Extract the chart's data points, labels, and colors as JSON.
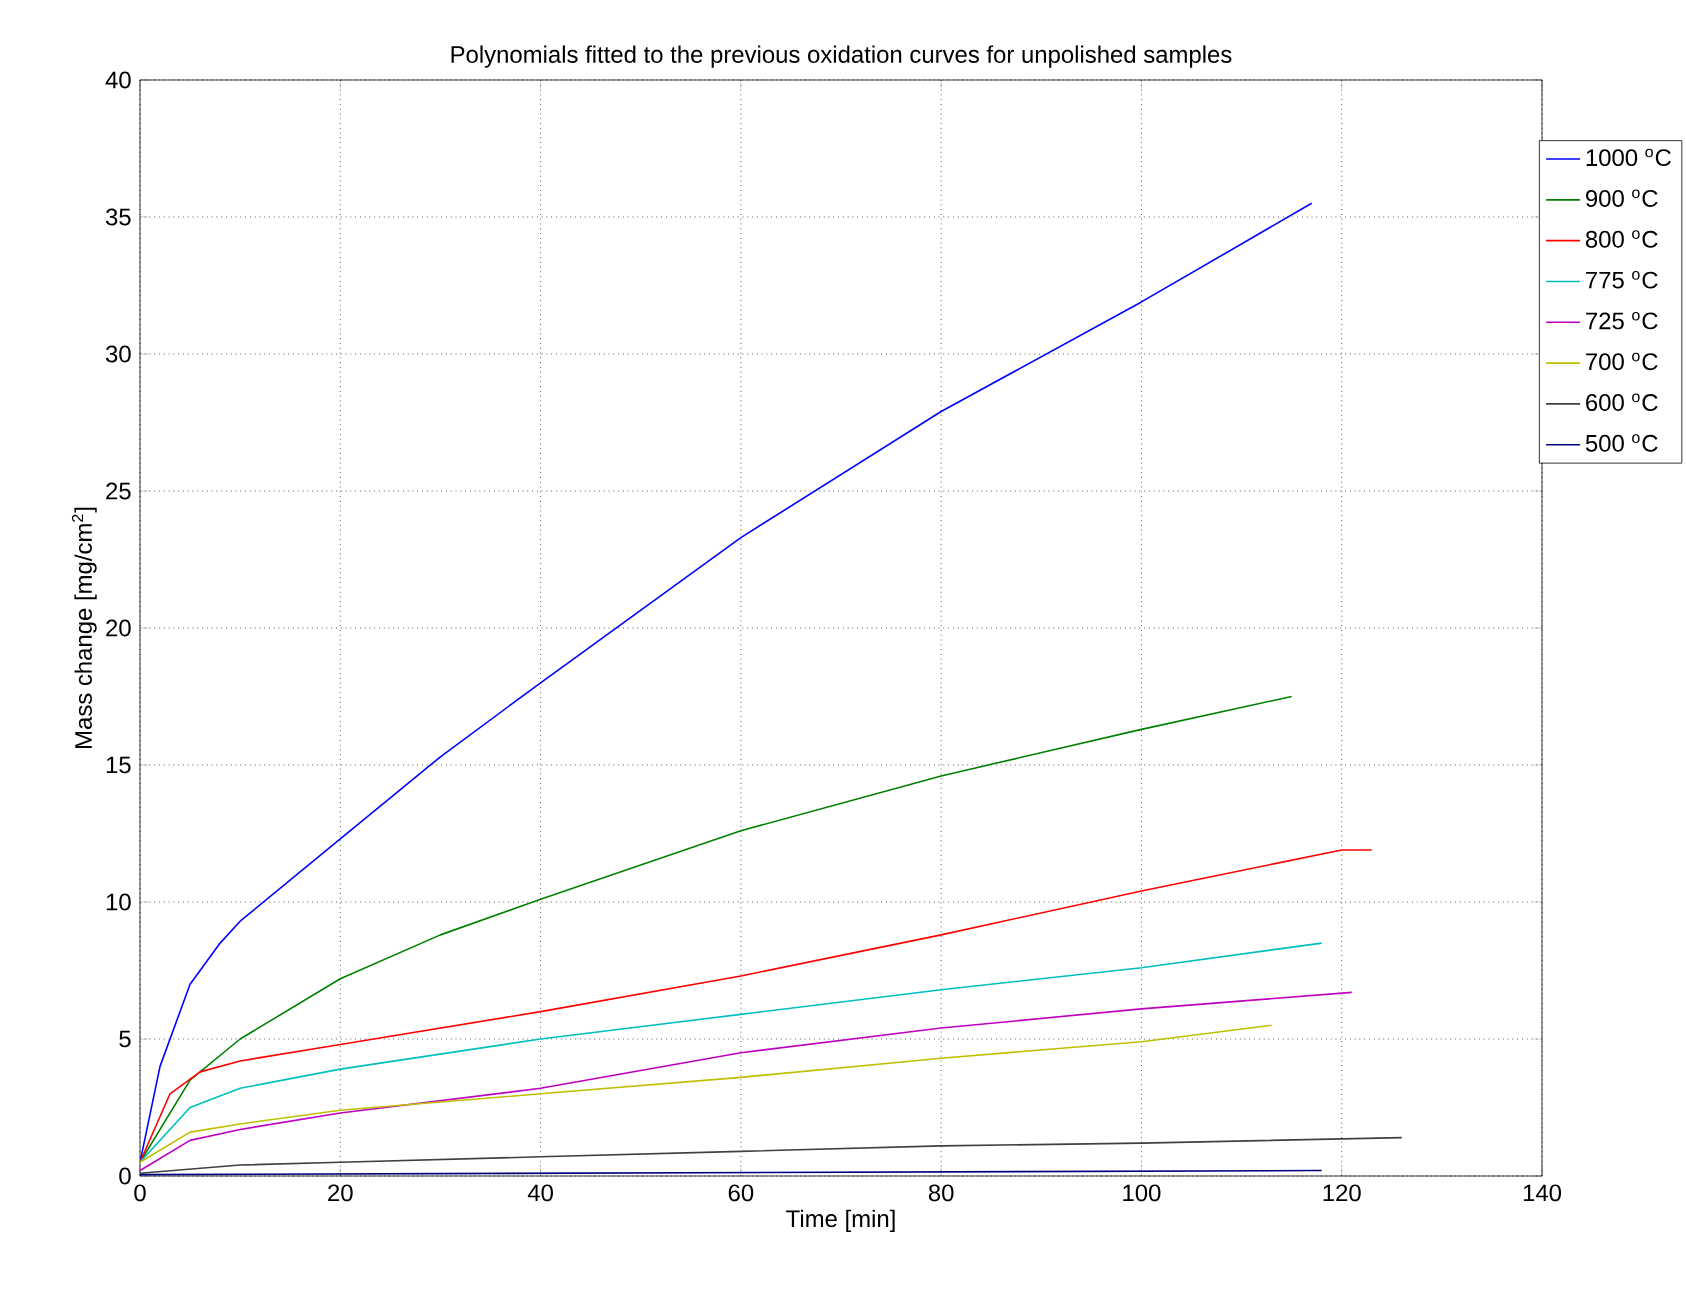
{
  "chart_data": {
    "type": "line",
    "title": "Polynomials fitted to the previous oxidation curves for unpolished samples",
    "xlabel": "Time [min]",
    "ylabel": "Mass change [mg/cm$^{2}$]",
    "xlim": [
      0,
      140
    ],
    "ylim": [
      0,
      40
    ],
    "xticks": [
      0,
      20,
      40,
      60,
      80,
      100,
      120,
      140
    ],
    "yticks": [
      0,
      5,
      10,
      15,
      20,
      25,
      30,
      35,
      40
    ],
    "grid": true,
    "legend": "top right",
    "marker": "none",
    "line_style": "solid",
    "series": [
      {
        "name": "1000 $^{o}$C",
        "color": "#0000ff",
        "x": [
          0,
          2,
          5,
          8,
          10,
          20,
          30,
          40,
          60,
          80,
          100,
          117
        ],
        "values": [
          0.5,
          4,
          7,
          8.5,
          9.3,
          12.3,
          15.3,
          18,
          23.3,
          27.9,
          31.9,
          35.5
        ]
      },
      {
        "name": "900 $^{o}$C",
        "color": "#008000",
        "x": [
          0,
          5,
          10,
          20,
          30,
          40,
          60,
          80,
          100,
          115
        ],
        "values": [
          0.5,
          3.5,
          5,
          7.2,
          8.8,
          10.1,
          12.6,
          14.6,
          16.3,
          17.5
        ]
      },
      {
        "name": "800 $^{o}$C",
        "color": "#ff0000",
        "x": [
          0,
          3,
          6,
          10,
          20,
          40,
          60,
          80,
          100,
          120,
          123
        ],
        "values": [
          0.5,
          3,
          3.8,
          4.2,
          4.8,
          6,
          7.3,
          8.8,
          10.4,
          11.9,
          11.9
        ]
      },
      {
        "name": "775 $^{o}$C",
        "color": "#00bfbf",
        "x": [
          0,
          5,
          10,
          20,
          40,
          60,
          80,
          100,
          118
        ],
        "values": [
          0.5,
          2.5,
          3.2,
          3.9,
          5,
          5.9,
          6.8,
          7.6,
          8.5
        ]
      },
      {
        "name": "725 $^{o}$C",
        "color": "#bf00bf",
        "x": [
          0,
          5,
          10,
          20,
          40,
          60,
          80,
          100,
          121
        ],
        "values": [
          0.2,
          1.3,
          1.7,
          2.3,
          3.2,
          4.5,
          5.4,
          6.1,
          6.7
        ]
      },
      {
        "name": "700 $^{o}$C",
        "color": "#bfbf00",
        "x": [
          0,
          5,
          10,
          20,
          40,
          60,
          80,
          100,
          113
        ],
        "values": [
          0.5,
          1.6,
          1.9,
          2.4,
          3,
          3.6,
          4.3,
          4.9,
          5.5
        ]
      },
      {
        "name": "600 $^{o}$C",
        "color": "#404040",
        "x": [
          0,
          10,
          20,
          40,
          60,
          80,
          100,
          126
        ],
        "values": [
          0.1,
          0.4,
          0.5,
          0.7,
          0.9,
          1.1,
          1.2,
          1.4
        ]
      },
      {
        "name": "500 $^{o}$C",
        "color": "#00007f",
        "x": [
          0,
          118
        ],
        "values": [
          0.05,
          0.2
        ]
      }
    ]
  }
}
